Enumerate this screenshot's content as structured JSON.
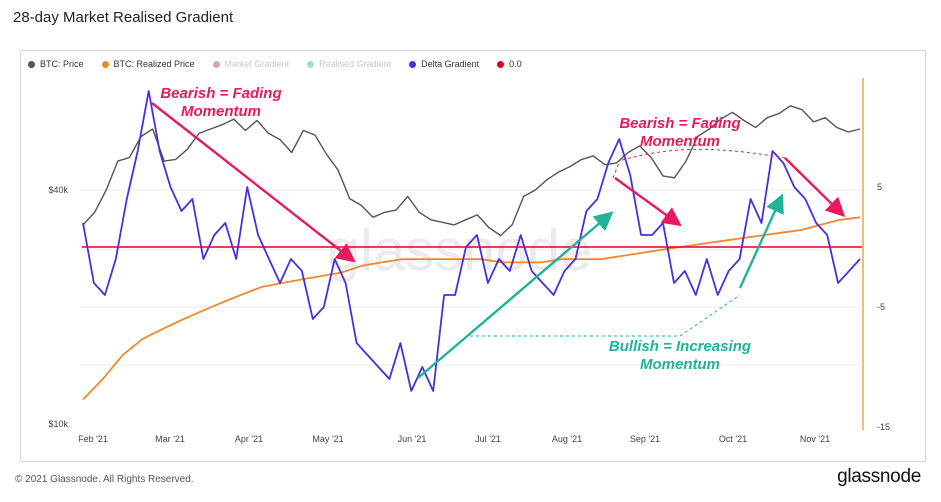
{
  "title": "28-day Market Realised Gradient",
  "footer": "© 2021 Glassnode. All Rights Reserved.",
  "brand": "glassnode",
  "watermark": "glassnode",
  "legend": [
    {
      "label": "BTC: Price",
      "color": "#555555",
      "muted": false
    },
    {
      "label": "BTC: Realized Price",
      "color": "#f0892c",
      "muted": false
    },
    {
      "label": "Market Gradient",
      "color": "#d9a0c0",
      "muted": true
    },
    {
      "label": "Realised Gradient",
      "color": "#9fd8d8",
      "muted": true
    },
    {
      "label": "Delta Gradient",
      "color": "#4b2ee0",
      "muted": false
    },
    {
      "label": "0.0",
      "color": "#e0001b",
      "muted": false
    }
  ],
  "annotations": {
    "bearish_1": [
      "Bearish = Fading",
      "Momentum"
    ],
    "bearish_2": [
      "Bearish = Fading",
      "Momentum"
    ],
    "bullish": [
      "Bullish = Increasing",
      "Momentum"
    ]
  },
  "colors": {
    "pink": "#e8195f",
    "teal": "#1fb39a",
    "price": "#555555",
    "realized": "#f0892c",
    "delta": "#4b2ee0",
    "zero": "#e0001b",
    "axis_right": "#f0892c"
  },
  "chart_data": {
    "type": "line",
    "x_ticks": [
      "Feb '21",
      "Mar '21",
      "Apr '21",
      "May '21",
      "Jun '21",
      "Jul '21",
      "Aug '21",
      "Sep '21",
      "Oct '21",
      "Nov '21"
    ],
    "y_left_ticks": [
      "$40k",
      "$10k"
    ],
    "y_right_ticks": [
      "5",
      "-5",
      "-15"
    ],
    "series": [
      {
        "name": "BTC: Price",
        "axis": "left",
        "y_log": true,
        "values": [
          32500,
          35000,
          40000,
          47500,
          48500,
          55000,
          57500,
          47500,
          48000,
          51000,
          56000,
          57500,
          59000,
          61000,
          57000,
          60500,
          56000,
          54000,
          50000,
          57000,
          55500,
          49500,
          45000,
          38000,
          36500,
          34000,
          35000,
          35500,
          38500,
          35000,
          33500,
          33000,
          32500,
          33500,
          34500,
          32000,
          30500,
          32500,
          38500,
          40000,
          42500,
          44500,
          46000,
          48000,
          49000,
          46500,
          47000,
          50000,
          52000,
          48500,
          43500,
          43000,
          47500,
          55000,
          57500,
          61000,
          63500,
          60500,
          58000,
          61500,
          63000,
          66000,
          64500,
          60000,
          61500,
          58000,
          56500,
          57500
        ]
      },
      {
        "name": "BTC: Realized Price",
        "axis": "left",
        "y_log": true,
        "values": [
          11500,
          13000,
          15000,
          16500,
          17500,
          18500,
          19500,
          20500,
          21500,
          22500,
          23000,
          23500,
          24000,
          24500,
          25500,
          26000,
          26500,
          26500,
          26500,
          26500,
          26500,
          26000,
          26000,
          26000,
          26500,
          26500,
          26500,
          27000,
          27500,
          28000,
          28500,
          29000,
          29500,
          30000,
          30500,
          31000,
          31500,
          32500,
          33500,
          34000
        ]
      },
      {
        "name": "Delta Gradient",
        "axis": "right",
        "values": [
          2,
          -3,
          -4,
          -1,
          4,
          8,
          13,
          8,
          5,
          3,
          4,
          -1,
          1,
          2,
          -1,
          5,
          1,
          -1,
          -3,
          -1,
          -2,
          -6,
          -5,
          -1,
          -3,
          -8,
          -9,
          -10,
          -11,
          -8,
          -12,
          -10,
          -12,
          -4,
          -4,
          0,
          1,
          -3,
          -1,
          -2,
          1,
          -2,
          -3,
          -4,
          -2,
          -1,
          3,
          4,
          7,
          9,
          6,
          1,
          1,
          2,
          -3,
          -2,
          -4,
          -1,
          -4,
          -2,
          -1,
          4,
          2,
          8,
          7,
          5,
          4,
          2,
          1,
          -3,
          -2,
          -1
        ]
      },
      {
        "name": "0.0",
        "axis": "right",
        "values": [
          0,
          0
        ]
      }
    ],
    "y_right_range": [
      -15,
      15
    ]
  }
}
